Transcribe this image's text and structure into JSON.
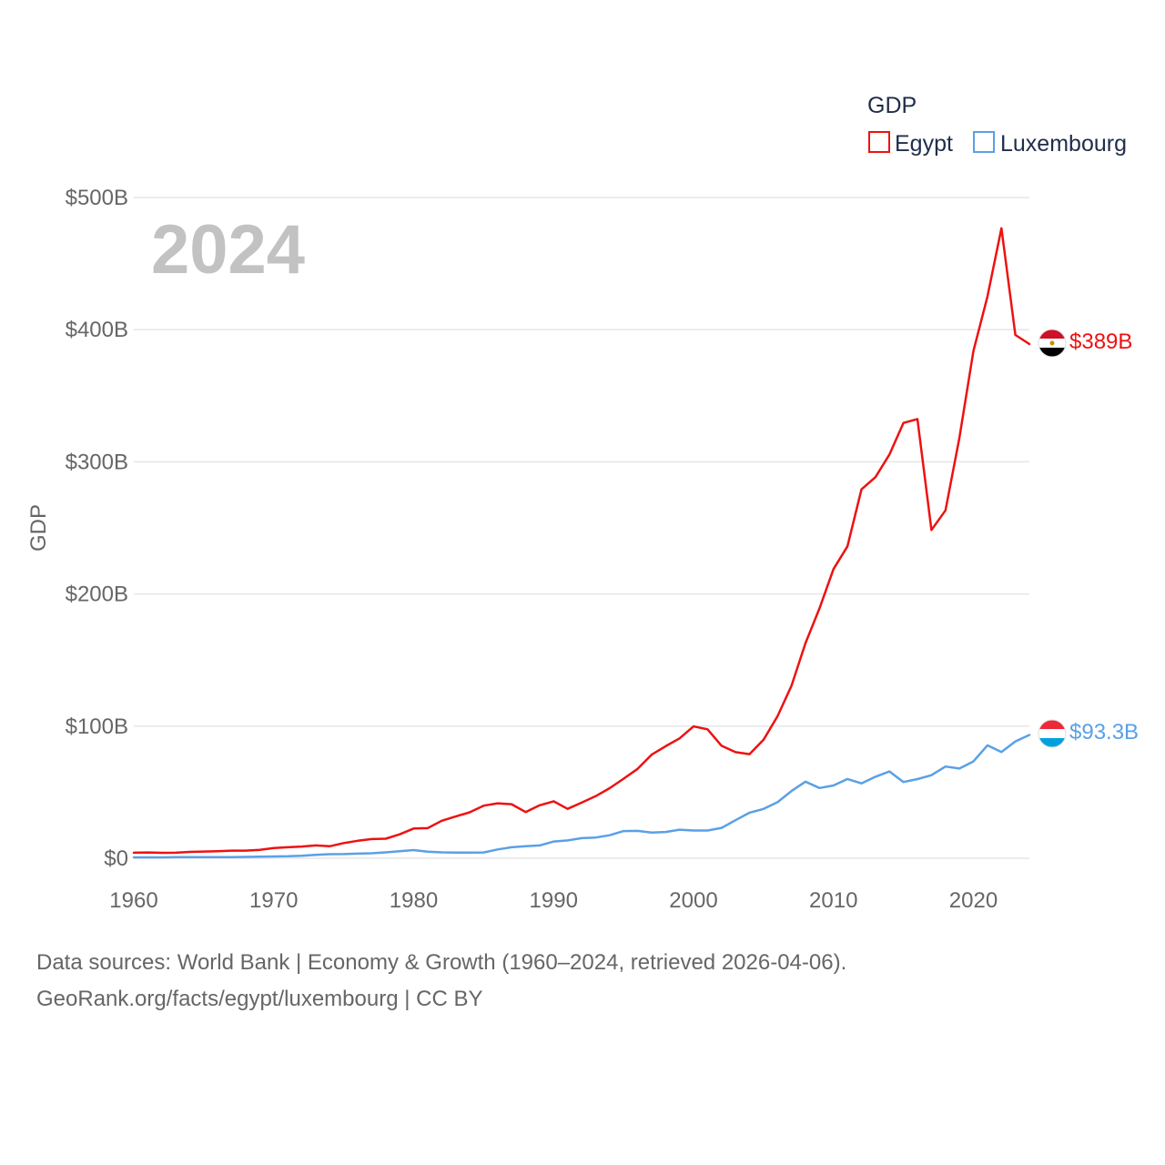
{
  "chart_data": {
    "type": "line",
    "title": "",
    "year_label": "2024",
    "ylabel": "GDP",
    "xlabel": "",
    "xlim": [
      1960,
      2024
    ],
    "ylim": [
      0,
      500
    ],
    "x_ticks": [
      1960,
      1970,
      1980,
      1990,
      2000,
      2010,
      2020
    ],
    "y_ticks": [
      {
        "value": 0,
        "label": "$0"
      },
      {
        "value": 100,
        "label": "$100B"
      },
      {
        "value": 200,
        "label": "$200B"
      },
      {
        "value": 300,
        "label": "$300B"
      },
      {
        "value": 400,
        "label": "$400B"
      },
      {
        "value": 500,
        "label": "$500B"
      }
    ],
    "grid": true,
    "legend": {
      "title": "GDP",
      "position": "top-right"
    },
    "units": "billions USD",
    "x": [
      1960,
      1961,
      1962,
      1963,
      1964,
      1965,
      1966,
      1967,
      1968,
      1969,
      1970,
      1971,
      1972,
      1973,
      1974,
      1975,
      1976,
      1977,
      1978,
      1979,
      1980,
      1981,
      1982,
      1983,
      1984,
      1985,
      1986,
      1987,
      1988,
      1989,
      1990,
      1991,
      1992,
      1993,
      1994,
      1995,
      1996,
      1997,
      1998,
      1999,
      2000,
      2001,
      2002,
      2003,
      2004,
      2005,
      2006,
      2007,
      2008,
      2009,
      2010,
      2011,
      2012,
      2013,
      2014,
      2015,
      2016,
      2017,
      2018,
      2019,
      2020,
      2021,
      2022,
      2023,
      2024
    ],
    "series": [
      {
        "name": "Egypt",
        "color": "#ee1111",
        "end_label": "$389B",
        "values": [
          4.2,
          4.4,
          4.1,
          4.2,
          4.8,
          5.1,
          5.4,
          5.8,
          5.8,
          6.4,
          7.8,
          8.3,
          8.9,
          9.7,
          9.1,
          11.5,
          13.2,
          14.5,
          14.8,
          18.1,
          22.5,
          22.8,
          28.4,
          31.6,
          34.8,
          39.8,
          41.6,
          40.9,
          35.0,
          40.1,
          43.1,
          37.4,
          42.1,
          47.0,
          53.0,
          60.2,
          67.6,
          78.4,
          84.8,
          90.7,
          99.8,
          97.6,
          85.1,
          80.3,
          78.8,
          89.7,
          107.5,
          130.5,
          162.8,
          189.1,
          218.9,
          236.0,
          279.1,
          288.4,
          305.6,
          329.4,
          332.4,
          248.4,
          263.2,
          318.1,
          383.8,
          425.0,
          476.7,
          396.0,
          389.1
        ]
      },
      {
        "name": "Luxembourg",
        "color": "#5aa0e6",
        "end_label": "$93.3B",
        "values": [
          0.7,
          0.7,
          0.7,
          0.8,
          0.8,
          0.9,
          0.9,
          0.9,
          1.0,
          1.2,
          1.4,
          1.5,
          1.9,
          2.6,
          3.1,
          3.2,
          3.5,
          3.8,
          4.5,
          5.4,
          6.2,
          5.0,
          4.5,
          4.3,
          4.3,
          4.4,
          6.7,
          8.3,
          9.1,
          9.7,
          12.7,
          13.5,
          15.2,
          15.7,
          17.4,
          20.6,
          20.7,
          19.4,
          19.9,
          21.6,
          21.0,
          21.0,
          23.0,
          28.8,
          34.5,
          37.3,
          42.4,
          50.9,
          58.0,
          53.2,
          55.1,
          60.0,
          56.7,
          61.7,
          65.7,
          57.7,
          59.9,
          62.9,
          69.4,
          67.9,
          73.3,
          85.5,
          80.4,
          88.4,
          93.3
        ]
      }
    ]
  },
  "footer": {
    "line1": "Data sources: World Bank | Economy & Growth (1960–2024, retrieved 2026-04-06).",
    "line2": "GeoRank.org/facts/egypt/luxembourg | CC BY"
  },
  "flags": {
    "egypt": {
      "top": "#ce1126",
      "middle": "#ffffff",
      "bottom": "#000000",
      "emblem": "#c09300"
    },
    "luxembourg": {
      "top": "#ed2939",
      "middle": "#ffffff",
      "bottom": "#00a1de"
    }
  }
}
